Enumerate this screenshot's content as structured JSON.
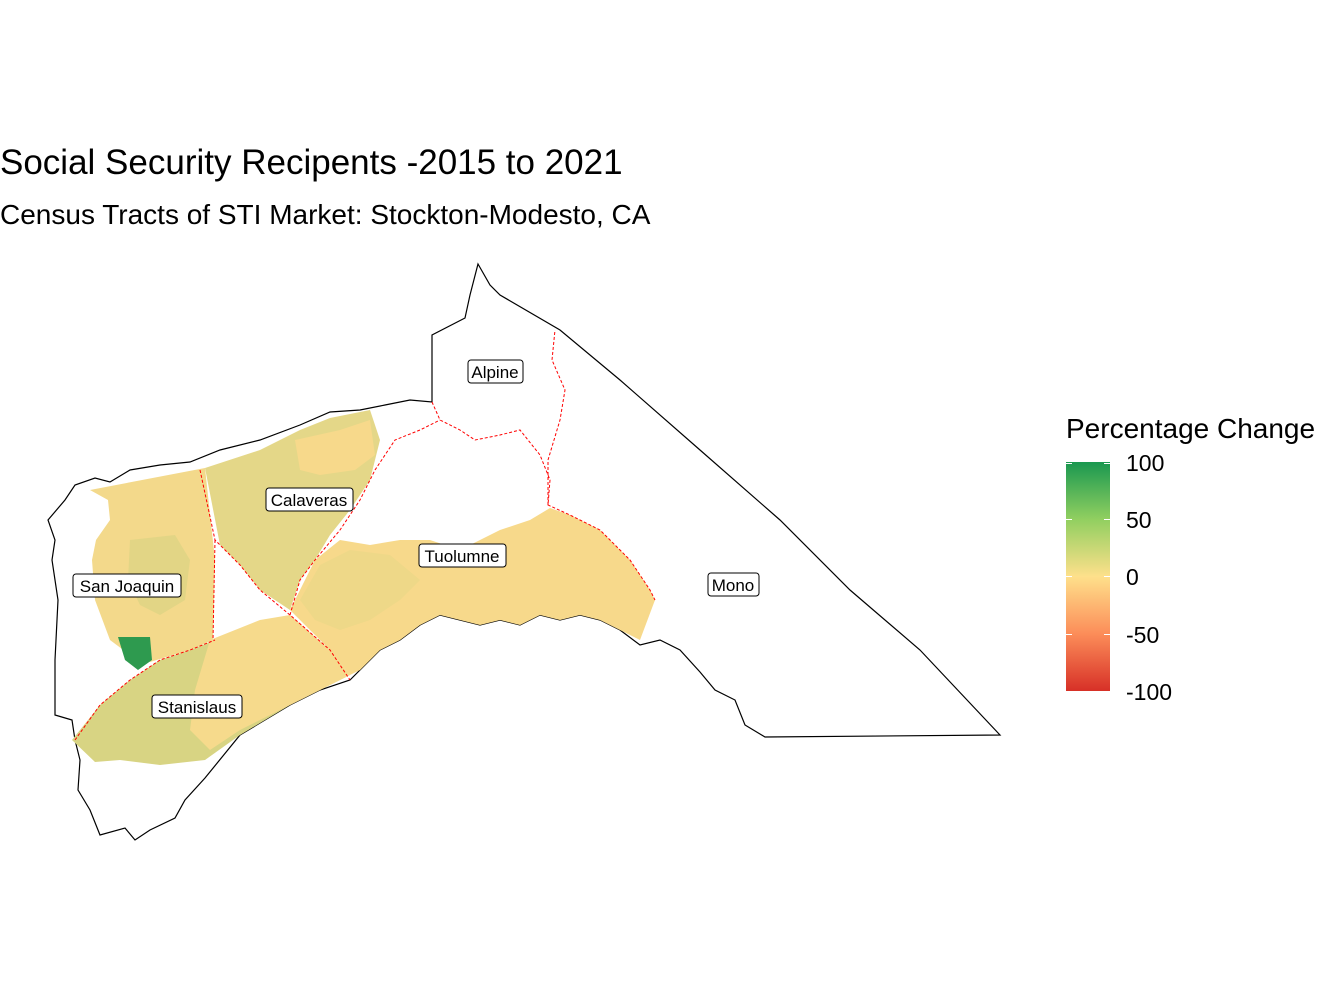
{
  "title": "Social Security Recipents -2015 to 2021",
  "subtitle": "Census Tracts of STI Market: Stockton-Modesto, CA",
  "legend": {
    "title": "Percentage Change",
    "breaks": [
      "100",
      "50",
      "0",
      "-50",
      "-100"
    ],
    "scale_colors": [
      "#1a9850",
      "#91cf60",
      "#fee08b",
      "#fc8d59",
      "#d73027"
    ]
  },
  "counties": {
    "alpine": "Alpine",
    "calaveras": "Calaveras",
    "tuolumne": "Tuolumne",
    "san_joaquin": "San Joaquin",
    "mono": "Mono",
    "stanislaus": "Stanislaus"
  },
  "colors": {
    "market_boundary": "#000000",
    "county_boundary": "#ff0000",
    "high_change": "#2e9a4f",
    "moderate_change": "#d8d483",
    "low_change": "#f9dc8c"
  }
}
